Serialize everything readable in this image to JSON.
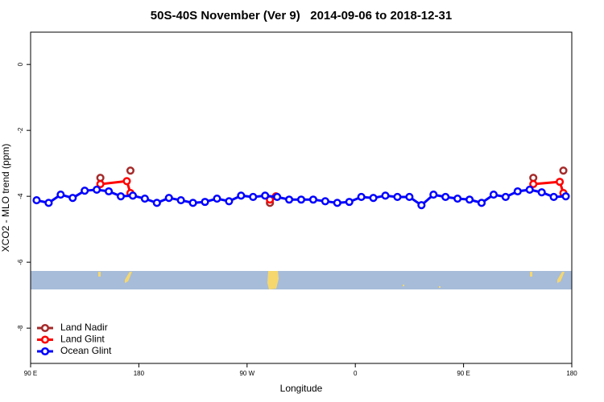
{
  "chart_data": {
    "type": "line",
    "title": "50S-40S November (Ver 9)   2014-09-06 to 2018-12-31",
    "xlabel": "Longitude",
    "ylabel": "XCO2 - MLO trend (ppm)",
    "xlim": [
      90,
      540
    ],
    "ylim": [
      -9.07,
      0.98
    ],
    "xticks": [
      {
        "value": 90,
        "label": "90 E"
      },
      180,
      {
        "value": 270,
        "label": "90 W"
      },
      {
        "value": 360,
        "label": "0"
      },
      {
        "value": 450,
        "label": "90 E"
      },
      {
        "value": 540,
        "label": "180"
      }
    ],
    "yticks": [
      0,
      -2,
      -4,
      -6,
      -8
    ],
    "legend": "bottom-left",
    "series": [
      {
        "name": "Land Nadir",
        "color": "#a52a2a",
        "x": [
          148,
          null,
          173,
          null,
          289,
          null,
          508,
          null,
          533
        ],
        "values": [
          -3.44,
          null,
          -3.22,
          null,
          -4.2,
          null,
          -3.44,
          null,
          -3.22
        ]
      },
      {
        "name": "Land Glint",
        "color": "#ff0000",
        "x": [
          148,
          170,
          173,
          null,
          289,
          294,
          null,
          508,
          530,
          533
        ],
        "values": [
          -3.63,
          -3.54,
          -3.9,
          null,
          -4.1,
          -4.0,
          null,
          -3.63,
          -3.56,
          -3.9
        ]
      },
      {
        "name": "Ocean Glint",
        "color": "#0000ff",
        "x": [
          95,
          105,
          115,
          125,
          135,
          145,
          155,
          165,
          175,
          185,
          195,
          205,
          215,
          225,
          235,
          245,
          255,
          265,
          275,
          285,
          295,
          305,
          315,
          325,
          335,
          345,
          355,
          365,
          375,
          385,
          395,
          405,
          415,
          425,
          435,
          445,
          455,
          465,
          475,
          485,
          495,
          505,
          515,
          525,
          535
        ],
        "values": [
          -4.12,
          -4.2,
          -3.95,
          -4.05,
          -3.83,
          -3.8,
          -3.85,
          -4.0,
          -3.98,
          -4.07,
          -4.2,
          -4.05,
          -4.12,
          -4.2,
          -4.17,
          -4.07,
          -4.15,
          -3.98,
          -4.02,
          -3.98,
          -4.02,
          -4.1,
          -4.1,
          -4.1,
          -4.15,
          -4.2,
          -4.17,
          -4.02,
          -4.05,
          -3.98,
          -4.02,
          -4.02,
          -4.27,
          -3.95,
          -4.02,
          -4.07,
          -4.1,
          -4.2,
          -3.95,
          -4.02,
          -3.85,
          -3.8,
          -3.88,
          -4.02,
          -4.0
        ]
      }
    ]
  }
}
